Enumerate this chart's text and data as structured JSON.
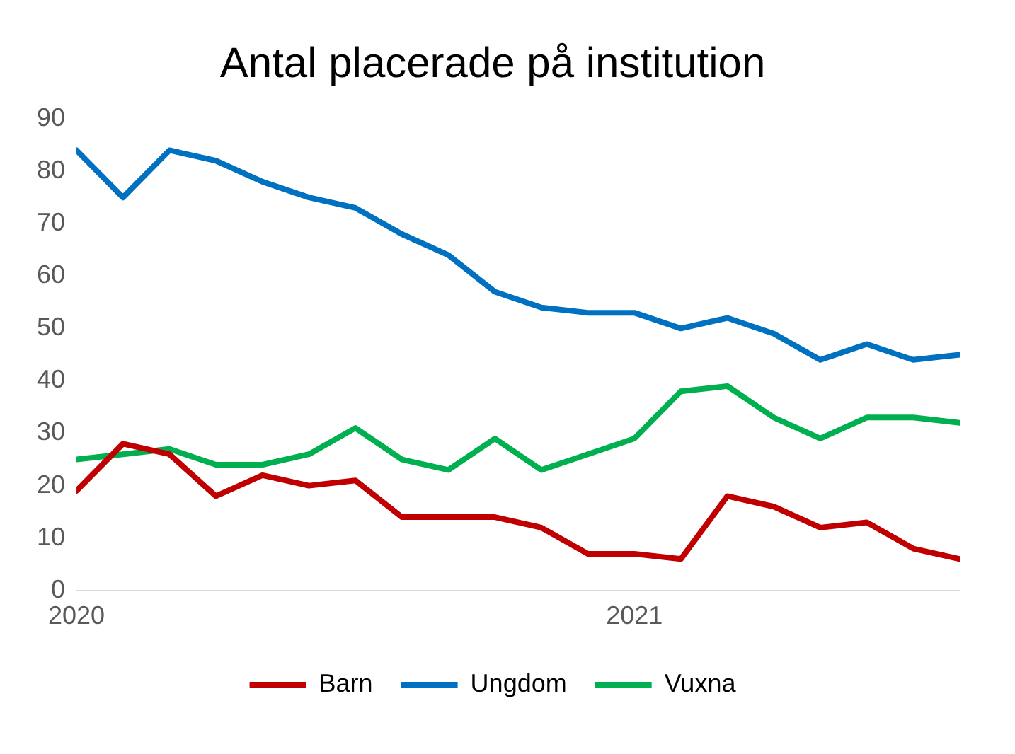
{
  "chart_data": {
    "type": "line",
    "title": "Antal placerade på institution",
    "x": [
      "2020-01",
      "2020-02",
      "2020-03",
      "2020-04",
      "2020-05",
      "2020-06",
      "2020-07",
      "2020-08",
      "2020-09",
      "2020-10",
      "2020-11",
      "2020-12",
      "2021-01",
      "2021-02",
      "2021-03",
      "2021-04",
      "2021-05",
      "2021-06",
      "2021-07",
      "2021-08"
    ],
    "series": [
      {
        "name": "Barn",
        "color": "#c00000",
        "values": [
          19,
          28,
          26,
          18,
          22,
          20,
          21,
          14,
          14,
          14,
          12,
          7,
          7,
          6,
          18,
          16,
          12,
          13,
          8,
          6
        ]
      },
      {
        "name": "Ungdom",
        "color": "#0070c0",
        "values": [
          84,
          75,
          84,
          82,
          78,
          75,
          73,
          68,
          64,
          57,
          54,
          53,
          53,
          50,
          52,
          49,
          44,
          47,
          44,
          45
        ]
      },
      {
        "name": "Vuxna",
        "color": "#00b050",
        "values": [
          25,
          26,
          27,
          24,
          24,
          26,
          31,
          25,
          23,
          29,
          23,
          26,
          29,
          38,
          39,
          33,
          29,
          33,
          33,
          32
        ]
      }
    ],
    "xlim": [
      "2020-01",
      "2021-08"
    ],
    "xticks": [
      {
        "value": "2020-01",
        "label": "2020"
      },
      {
        "value": "2021-01",
        "label": "2021"
      }
    ],
    "ylim": [
      0,
      90
    ],
    "yticks": [
      0,
      10,
      20,
      30,
      40,
      50,
      60,
      70,
      80,
      90
    ],
    "grid": false,
    "legend": "bottom",
    "marker": "none",
    "line_style": "solid"
  }
}
